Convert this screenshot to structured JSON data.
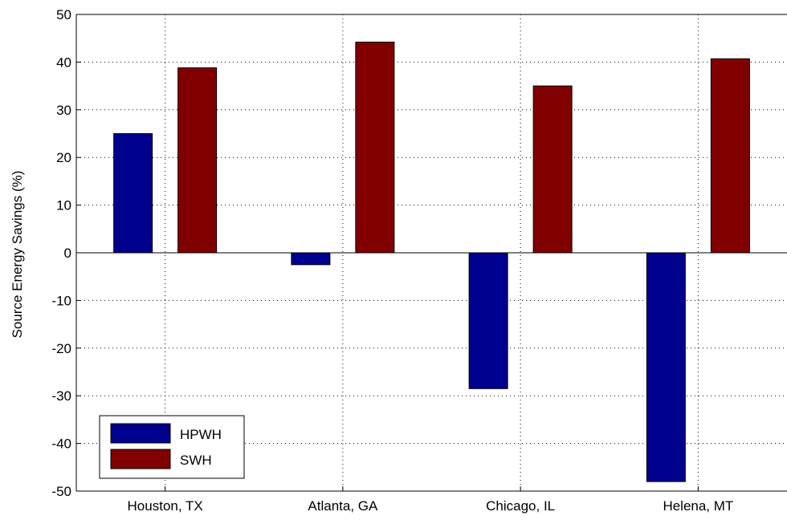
{
  "chart_data": {
    "type": "bar",
    "title": "",
    "xlabel": "",
    "ylabel": "Source Energy Savings (%)",
    "categories": [
      "Houston, TX",
      "Atlanta, GA",
      "Chicago, IL",
      "Helena, MT"
    ],
    "series": [
      {
        "name": "HPWH",
        "color": "#00008f",
        "values": [
          25,
          -2.5,
          -28.5,
          -48
        ]
      },
      {
        "name": "SWH",
        "color": "#800000",
        "values": [
          38.8,
          44.2,
          35,
          40.7
        ]
      }
    ],
    "ylim": [
      -50,
      50
    ],
    "yticks": [
      "50",
      "40",
      "30",
      "20",
      "10",
      "0",
      "-10",
      "-20",
      "-30",
      "-40",
      "-50"
    ],
    "grid": true,
    "legend_position": "bottom-left"
  }
}
